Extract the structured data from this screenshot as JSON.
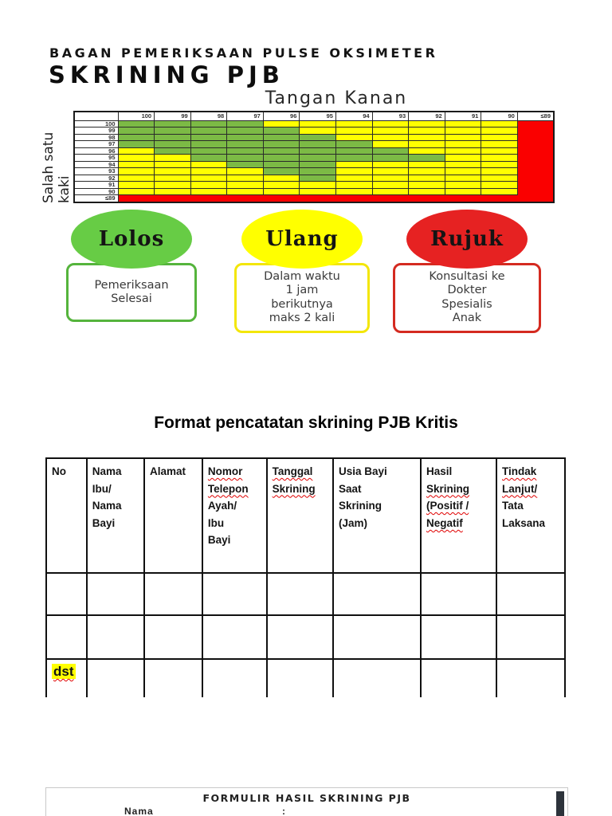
{
  "page": {
    "heading_line1": "BAGAN PEMERIKSAAN PULSE OKSIMETER",
    "heading_line2": "SKRINING PJB"
  },
  "chart_data": {
    "type": "heatmap",
    "title": "BAGAN PEMERIKSAAN PULSE OKSIMETER SKRINING PJB",
    "x_axis_title": "Tangan Kanan",
    "y_axis_title": "Salah satu kaki",
    "x_categories": [
      "100",
      "99",
      "98",
      "97",
      "96",
      "95",
      "94",
      "93",
      "92",
      "91",
      "90",
      "≤89"
    ],
    "y_categories": [
      "100",
      "99",
      "98",
      "97",
      "96",
      "95",
      "94",
      "93",
      "92",
      "91",
      "90",
      "≤89"
    ],
    "legend": {
      "G": "Lolos",
      "Y": "Ulang",
      "R": "Rujuk"
    },
    "colors": {
      "G": "#7cba45",
      "Y": "#ffff00",
      "R": "#fa0000"
    },
    "matrix": [
      [
        "G",
        "G",
        "G",
        "G",
        "Y",
        "Y",
        "Y",
        "Y",
        "Y",
        "Y",
        "Y",
        "R"
      ],
      [
        "G",
        "G",
        "G",
        "G",
        "G",
        "Y",
        "Y",
        "Y",
        "Y",
        "Y",
        "Y",
        "R"
      ],
      [
        "G",
        "G",
        "G",
        "G",
        "G",
        "G",
        "Y",
        "Y",
        "Y",
        "Y",
        "Y",
        "R"
      ],
      [
        "G",
        "G",
        "G",
        "G",
        "G",
        "G",
        "G",
        "Y",
        "Y",
        "Y",
        "Y",
        "R"
      ],
      [
        "Y",
        "G",
        "G",
        "G",
        "G",
        "G",
        "G",
        "G",
        "Y",
        "Y",
        "Y",
        "R"
      ],
      [
        "Y",
        "Y",
        "G",
        "G",
        "G",
        "G",
        "G",
        "G",
        "G",
        "Y",
        "Y",
        "R"
      ],
      [
        "Y",
        "Y",
        "Y",
        "G",
        "G",
        "G",
        "Y",
        "Y",
        "Y",
        "Y",
        "Y",
        "R"
      ],
      [
        "Y",
        "Y",
        "Y",
        "Y",
        "G",
        "G",
        "Y",
        "Y",
        "Y",
        "Y",
        "Y",
        "R"
      ],
      [
        "Y",
        "Y",
        "Y",
        "Y",
        "Y",
        "G",
        "Y",
        "Y",
        "Y",
        "Y",
        "Y",
        "R"
      ],
      [
        "Y",
        "Y",
        "Y",
        "Y",
        "Y",
        "Y",
        "Y",
        "Y",
        "Y",
        "Y",
        "Y",
        "R"
      ],
      [
        "Y",
        "Y",
        "Y",
        "Y",
        "Y",
        "Y",
        "Y",
        "Y",
        "Y",
        "Y",
        "Y",
        "R"
      ],
      [
        "R",
        "R",
        "R",
        "R",
        "R",
        "R",
        "R",
        "R",
        "R",
        "R",
        "R",
        "R"
      ]
    ]
  },
  "outcomes": [
    {
      "label": "Lolos",
      "circle_color": "#67cc45",
      "box_border": "#55b43c",
      "box_text": "Pemeriksaan\nSelesai"
    },
    {
      "label": "Ulang",
      "circle_color": "#ffff00",
      "box_border": "#f3e60a",
      "box_text": "Dalam waktu\n1 jam\nberikutnya\nmaks 2 kali"
    },
    {
      "label": "Rujuk",
      "circle_color": "#e62222",
      "box_border": "#d42a20",
      "box_text": "Konsultasi ke\nDokter\nSpesialis\nAnak"
    }
  ],
  "table": {
    "title": "Format pencatatan skrining PJB Kritis",
    "columns": [
      {
        "lines": [
          {
            "t": "No"
          }
        ]
      },
      {
        "lines": [
          {
            "t": "Nama"
          },
          {
            "t": "Ibu/"
          },
          {
            "t": "Nama"
          },
          {
            "t": "Bayi"
          }
        ]
      },
      {
        "lines": [
          {
            "t": "Alamat"
          }
        ]
      },
      {
        "lines": [
          {
            "t": "Nomor",
            "sq": true
          },
          {
            "t": "Telepon",
            "sq": true
          },
          {
            "t": "Ayah/"
          },
          {
            "t": "Ibu"
          },
          {
            "t": "Bayi"
          }
        ]
      },
      {
        "lines": [
          {
            "t": "Tanggal",
            "sq": true
          },
          {
            "t": "Skrining",
            "sq": true
          }
        ]
      },
      {
        "lines": [
          {
            "t": "Usia Bayi"
          },
          {
            "t": "Saat"
          },
          {
            "t": "Skrining"
          },
          {
            "t": "(Jam)"
          }
        ]
      },
      {
        "lines": [
          {
            "t": "Hasil"
          },
          {
            "t": "Skrining",
            "sq": true
          },
          {
            "t": "(Positif /",
            "sq": true
          },
          {
            "t": "Negatif",
            "sq": true
          }
        ]
      },
      {
        "lines": [
          {
            "t": "Tindak",
            "sq": true
          },
          {
            "t": "Lanjut/",
            "sq": true
          },
          {
            "t": "Tata"
          },
          {
            "t": "Laksana"
          }
        ]
      }
    ],
    "empty_row_count": 2,
    "last_row_label": "dst"
  },
  "bottom_form": {
    "title": "FORMULIR HASIL SKRINING PJB",
    "field_label": "Nama",
    "separator": ":"
  }
}
